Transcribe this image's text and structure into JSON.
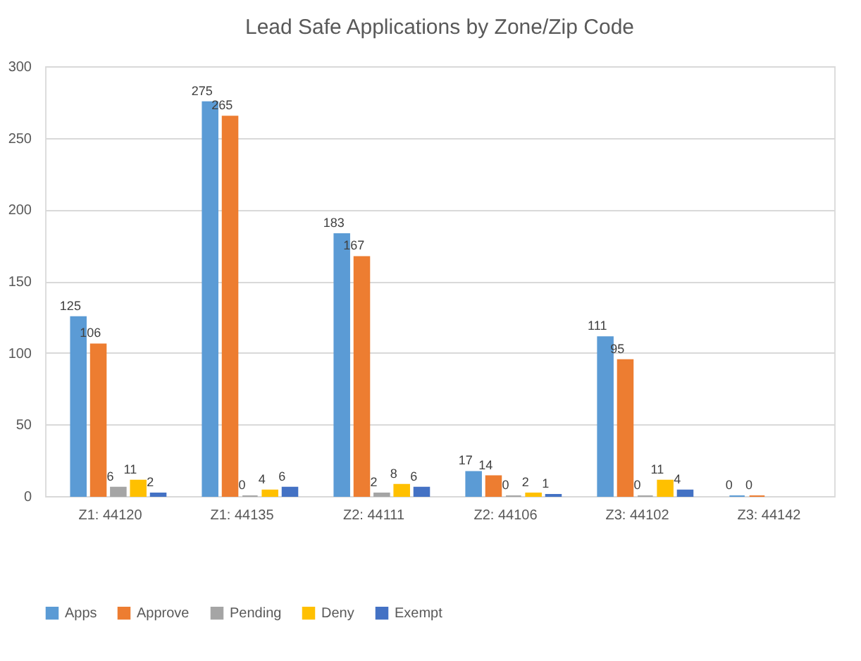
{
  "chart_data": {
    "type": "bar",
    "title": "Lead Safe Applications by Zone/Zip Code",
    "categories": [
      "Z1: 44120",
      "Z1: 44135",
      "Z2: 44111",
      "Z2: 44106",
      "Z3: 44102",
      "Z3: 44142"
    ],
    "series": [
      {
        "name": "Apps",
        "color": "#5b9bd5",
        "values": [
          125,
          275,
          183,
          17,
          111,
          0
        ]
      },
      {
        "name": "Approve",
        "color": "#ed7d31",
        "values": [
          106,
          265,
          167,
          14,
          95,
          0
        ]
      },
      {
        "name": "Pending",
        "color": "#a5a5a5",
        "values": [
          6,
          0,
          2,
          0,
          0,
          null
        ]
      },
      {
        "name": "Deny",
        "color": "#ffc000",
        "values": [
          11,
          4,
          8,
          2,
          11,
          null
        ]
      },
      {
        "name": "Exempt",
        "color": "#4472c4",
        "values": [
          2,
          6,
          6,
          1,
          4,
          null
        ]
      }
    ],
    "ylim": [
      0,
      300
    ],
    "yticks": [
      0,
      50,
      100,
      150,
      200,
      250,
      300
    ],
    "grid": "y",
    "legend": "bottom",
    "data_labels": true
  }
}
